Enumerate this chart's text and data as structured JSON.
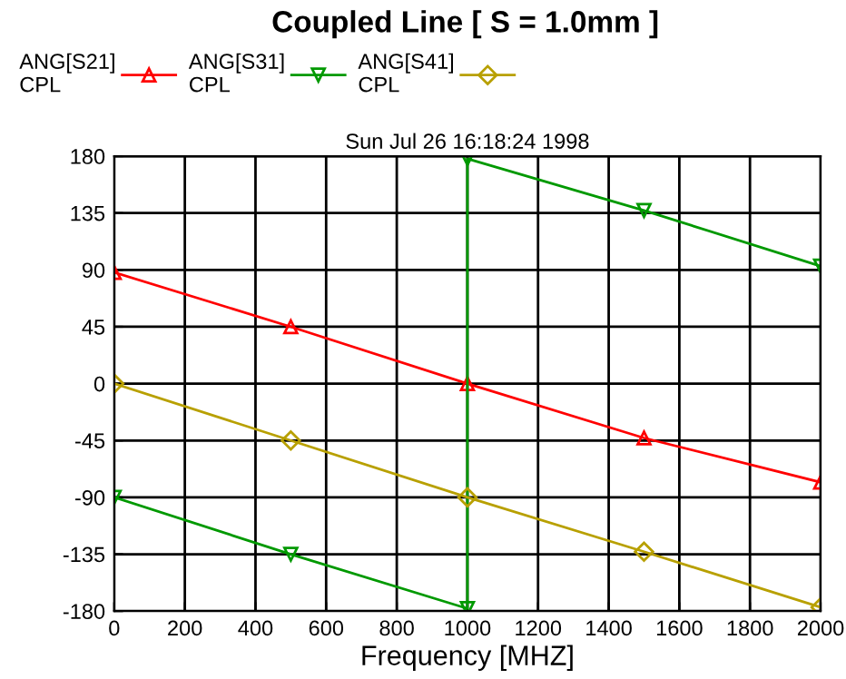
{
  "chart_data": {
    "type": "line",
    "title": "Coupled Line [ S = 1.0mm ]",
    "subtitle": "Sun Jul 26 16:18:24 1998",
    "xlabel": "Frequency [MHZ]",
    "xlim": [
      0,
      2000
    ],
    "xticks": [
      0,
      200,
      400,
      600,
      800,
      1000,
      1200,
      1400,
      1600,
      1800,
      2000
    ],
    "ylim": [
      -180,
      180
    ],
    "yticks": [
      -180,
      -135,
      -90,
      -45,
      0,
      45,
      90,
      135,
      180
    ],
    "grid": true,
    "legend": "top left",
    "series": [
      {
        "name": "ANG[S21]\nCPL",
        "color": "#ff0000",
        "marker": "triangle",
        "x": [
          0,
          500,
          1000,
          1500,
          2000
        ],
        "values": [
          88,
          45,
          0,
          -43,
          -78
        ]
      },
      {
        "name": "ANG[S31]\nCPL",
        "color": "#009900",
        "marker": "triangle_down",
        "x": [
          0,
          500,
          1000,
          1000,
          1500,
          2000
        ],
        "values": [
          -90,
          -135,
          -178,
          178,
          137,
          93
        ]
      },
      {
        "name": "ANG[S41]\nCPL",
        "color": "#b8a000",
        "marker": "diamond",
        "x": [
          0,
          500,
          1000,
          1500,
          2000
        ],
        "values": [
          0,
          -45,
          -90,
          -133,
          -177
        ]
      }
    ]
  }
}
